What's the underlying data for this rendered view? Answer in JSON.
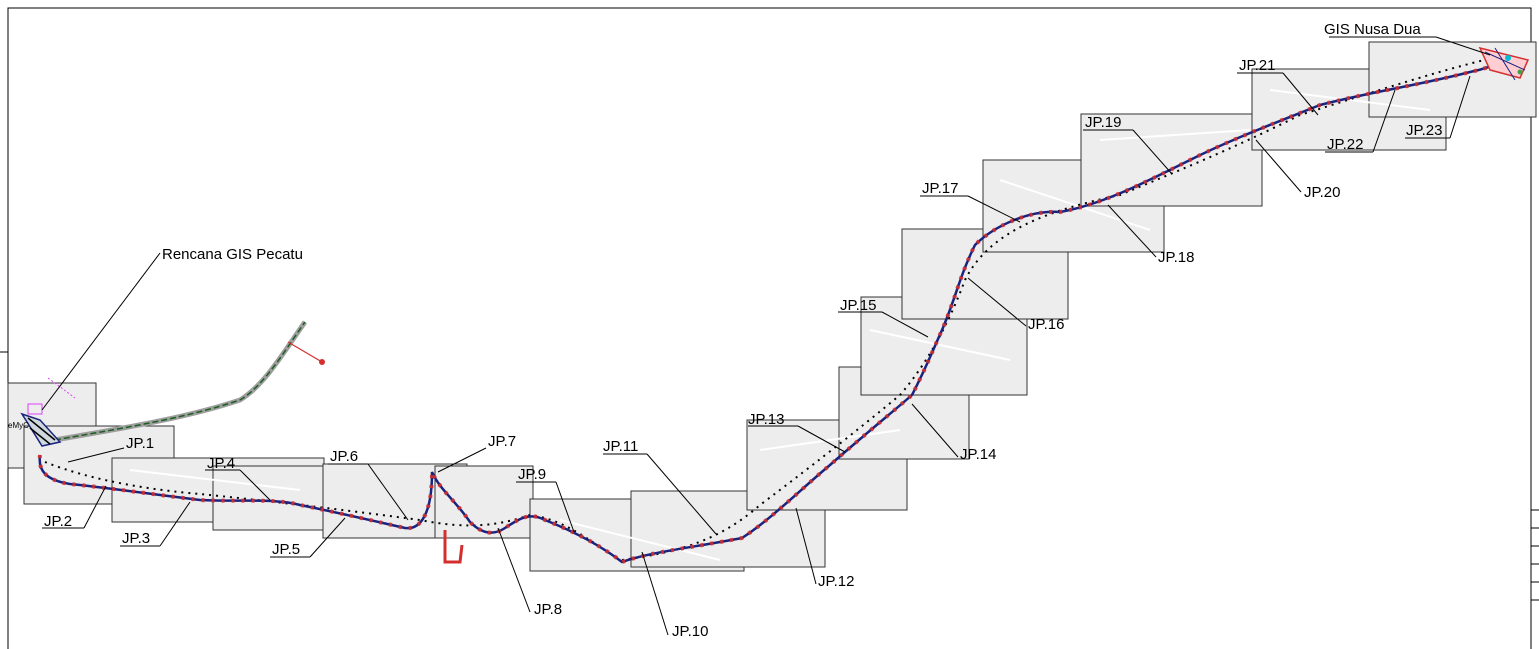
{
  "map": {
    "origin_label": "Rencana GIS Pecatu",
    "destination_label": "GIS Nusa Dua",
    "left_stub_label": "eMyC",
    "joint_pits": [
      "JP.1",
      "JP.2",
      "JP.3",
      "JP.4",
      "JP.5",
      "JP.6",
      "JP.7",
      "JP.8",
      "JP.9",
      "JP.10",
      "JP.11",
      "JP.12",
      "JP.13",
      "JP.14",
      "JP.15",
      "JP.16",
      "JP.17",
      "JP.18",
      "JP.19",
      "JP.20",
      "JP.21",
      "JP.22",
      "JP.23"
    ],
    "colors": {
      "route_primary": "#1a237e",
      "route_markers": "#d32f2f",
      "alt_route": "#000000",
      "secondary_route": "#1b5e20",
      "accent_cyan": "#00bcd4",
      "map_tile": "#ededed",
      "frame": "#000000"
    }
  }
}
